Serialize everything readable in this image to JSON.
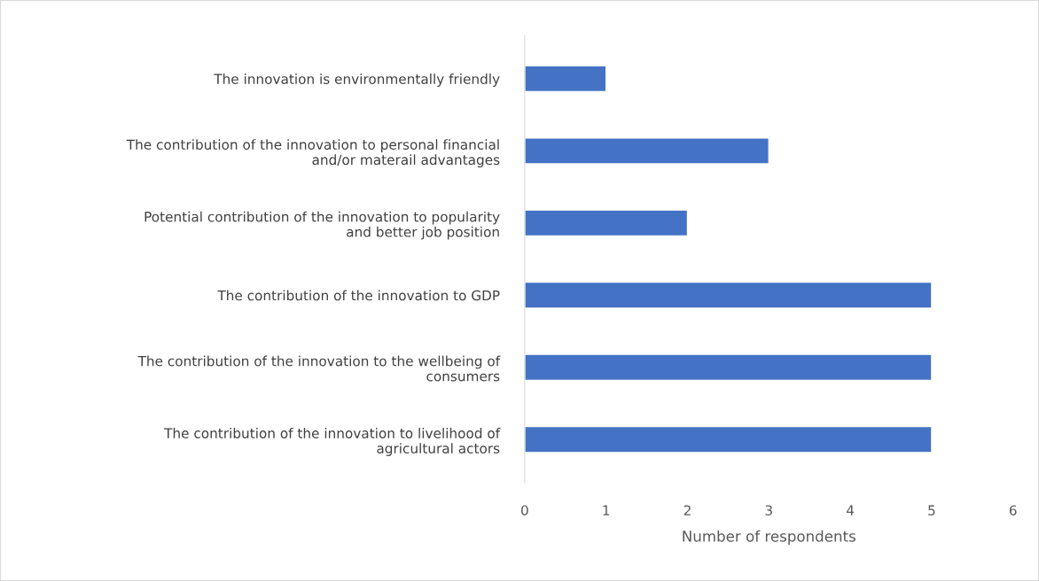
{
  "chart_data": {
    "type": "bar",
    "orientation": "horizontal",
    "xlabel": "Number of respondents",
    "categories": [
      "The innovation is environmentally friendly",
      "The contribution of the innovation to personal financial\nand/or materail advantages",
      "Potential contribution of the innovation to popularity\nand better job position",
      "The contribution of the innovation to GDP",
      "The contribution of the innovation to the wellbeing of\nconsumers",
      "The contribution of the innovation to livelihood of\nagricultural actors"
    ],
    "values": [
      1,
      3,
      2,
      5,
      5,
      5
    ],
    "color": "#4472c4",
    "xlim": [
      0,
      6
    ],
    "xticks": [
      0,
      1,
      2,
      3,
      4,
      5,
      6
    ],
    "grid": false,
    "legend": false
  }
}
